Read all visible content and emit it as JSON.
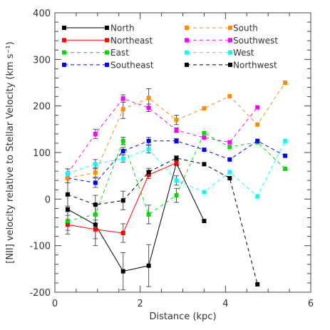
{
  "chart_data": {
    "type": "line",
    "title": "",
    "xlabel": "Distance (kpc)",
    "ylabel": "[NII] velocity relative to Stellar Velocity (km s⁻¹)",
    "xlim": [
      0,
      6
    ],
    "ylim": [
      -200,
      400
    ],
    "xticks": [
      0,
      2,
      4,
      6
    ],
    "yticks": [
      -200,
      -100,
      0,
      100,
      200,
      300,
      400
    ],
    "grid": false,
    "legend_position": "top, inside plot (two columns)",
    "series": [
      {
        "name": "North",
        "color": "#000000",
        "dash": "solid",
        "x": [
          0.3,
          0.95,
          1.6,
          2.2,
          2.85,
          3.5
        ],
        "y": [
          -22,
          -55,
          -155,
          -143,
          77,
          -47
        ],
        "yerr": [
          30,
          45,
          40,
          45,
          5,
          0
        ]
      },
      {
        "name": "Northeast",
        "color": "#ff0000",
        "dash": "solid",
        "x": [
          0.3,
          0.95,
          1.6,
          2.2,
          2.85
        ],
        "y": [
          -55,
          -65,
          -73,
          52,
          78
        ],
        "yerr": [
          20,
          20,
          20,
          8,
          5
        ]
      },
      {
        "name": "East",
        "color": "#00dd00",
        "dash": "dashed",
        "x": [
          0.3,
          0.95,
          1.6,
          2.2,
          2.85,
          3.5,
          4.1,
          4.75,
          5.4
        ],
        "y": [
          -47,
          -33,
          125,
          -33,
          8,
          142,
          112,
          122,
          65
        ],
        "yerr": [
          20,
          20,
          8,
          20,
          15,
          0,
          0,
          0,
          0
        ]
      },
      {
        "name": "Southeast",
        "color": "#0000ff",
        "dash": "dashed",
        "x": [
          0.3,
          0.95,
          1.6,
          2.2,
          2.85,
          3.5,
          4.1,
          4.75,
          5.4
        ],
        "y": [
          45,
          35,
          103,
          125,
          125,
          106,
          85,
          125,
          93
        ],
        "yerr": [
          10,
          10,
          8,
          8,
          5,
          0,
          0,
          0,
          0
        ]
      },
      {
        "name": "South",
        "color": "#ff8c00",
        "dash": "dashed",
        "x": [
          0.3,
          0.95,
          1.6,
          2.2,
          2.85,
          3.5,
          4.1,
          4.75,
          5.4
        ],
        "y": [
          45,
          57,
          193,
          217,
          170,
          195,
          221,
          160,
          250
        ],
        "yerr": [
          10,
          10,
          20,
          20,
          10,
          0,
          0,
          0,
          0
        ]
      },
      {
        "name": "Southwest",
        "color": "#ff00ff",
        "dash": "dashed",
        "x": [
          0.3,
          0.95,
          1.6,
          2.2,
          2.85,
          3.5,
          4.1,
          4.75
        ],
        "y": [
          55,
          140,
          216,
          196,
          148,
          132,
          122,
          197
        ],
        "yerr": [
          10,
          10,
          8,
          8,
          5,
          0,
          0,
          0
        ]
      },
      {
        "name": "West",
        "color": "#00ffff",
        "dash": "dashed",
        "x": [
          0.3,
          0.95,
          1.6,
          2.2,
          2.85,
          3.5,
          4.1,
          4.75,
          5.4
        ],
        "y": [
          55,
          75,
          87,
          107,
          40,
          15,
          58,
          6,
          125
        ],
        "yerr": [
          10,
          10,
          8,
          8,
          10,
          0,
          0,
          0,
          0
        ]
      },
      {
        "name": "Northwest",
        "color": "#000000",
        "dash": "dashed",
        "x": [
          0.3,
          0.95,
          1.6,
          2.2,
          2.85,
          3.5,
          4.1,
          4.75
        ],
        "y": [
          10,
          -12,
          -3,
          58,
          88,
          75,
          45,
          -183
        ],
        "yerr": [
          25,
          20,
          20,
          8,
          5,
          0,
          0,
          0
        ]
      }
    ]
  }
}
